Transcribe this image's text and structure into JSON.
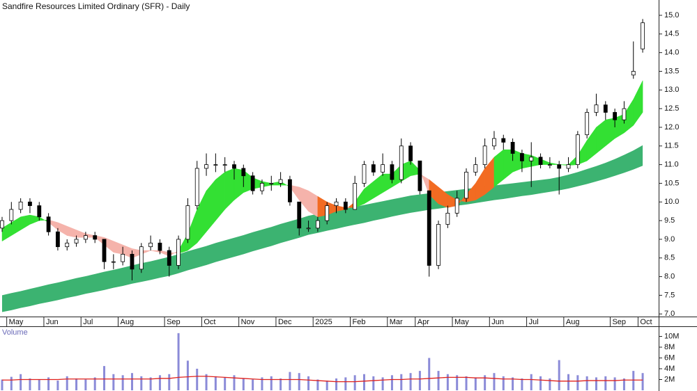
{
  "chart_data": {
    "type": "candlestick",
    "title": "Sandfire Resources Limited Ordinary (SFR) - Daily",
    "categories": [
      null,
      "May",
      null,
      null,
      null,
      "Jun",
      null,
      null,
      null,
      "Jul",
      null,
      null,
      null,
      "Aug",
      null,
      null,
      null,
      null,
      "Sep",
      null,
      null,
      null,
      "Oct",
      null,
      null,
      null,
      "Nov",
      null,
      null,
      null,
      "Dec",
      null,
      null,
      null,
      "2025",
      null,
      null,
      null,
      "Feb",
      null,
      null,
      null,
      "Mar",
      null,
      null,
      "Apr",
      null,
      null,
      null,
      "May",
      null,
      null,
      null,
      "Jun",
      null,
      null,
      null,
      "Jul",
      null,
      null,
      null,
      "Aug",
      null,
      null,
      null,
      null,
      "Sep",
      null,
      null,
      "Oct"
    ],
    "candles": {
      "open": [
        9.3,
        9.5,
        9.8,
        10.0,
        9.9,
        9.6,
        9.2,
        8.8,
        8.9,
        9.0,
        9.1,
        9.0,
        8.4,
        8.4,
        8.6,
        8.2,
        8.8,
        8.9,
        8.7,
        8.3,
        9.0,
        9.9,
        10.9,
        11.0,
        11.0,
        11.0,
        10.9,
        10.7,
        10.3,
        10.5,
        10.5,
        10.6,
        10.0,
        9.3,
        9.3,
        9.5,
        9.9,
        10.0,
        9.8,
        10.5,
        11.0,
        10.8,
        11.0,
        10.6,
        11.5,
        11.1,
        10.3,
        8.3,
        9.4,
        9.7,
        10.1,
        10.8,
        11.0,
        11.5,
        11.7,
        11.6,
        11.3,
        11.1,
        11.2,
        11.0,
        11.0,
        10.9,
        11.0,
        11.8,
        12.4,
        12.6,
        12.4,
        12.2,
        13.4,
        14.1
      ],
      "high": [
        9.6,
        10.0,
        10.1,
        10.1,
        10.0,
        9.7,
        9.3,
        9.0,
        9.1,
        9.2,
        9.2,
        9.0,
        8.6,
        8.8,
        8.7,
        8.9,
        9.1,
        9.0,
        8.8,
        9.1,
        10.1,
        11.1,
        11.3,
        11.3,
        11.2,
        11.1,
        11.0,
        10.8,
        10.6,
        10.7,
        10.8,
        10.7,
        10.0,
        9.5,
        9.6,
        10.0,
        10.1,
        10.1,
        10.7,
        11.1,
        11.1,
        11.3,
        11.1,
        11.7,
        11.6,
        11.1,
        10.3,
        9.5,
        9.9,
        10.3,
        10.9,
        11.2,
        11.7,
        11.9,
        11.8,
        11.7,
        11.4,
        11.6,
        11.3,
        11.2,
        11.1,
        11.2,
        11.9,
        12.5,
        12.9,
        12.7,
        12.5,
        12.7,
        14.3,
        14.9
      ],
      "low": [
        9.2,
        9.4,
        9.7,
        9.7,
        9.5,
        9.1,
        8.7,
        8.7,
        8.8,
        8.9,
        8.9,
        8.2,
        8.2,
        8.3,
        7.9,
        8.1,
        8.7,
        8.6,
        8.0,
        8.2,
        8.9,
        9.8,
        10.7,
        10.8,
        10.8,
        10.6,
        10.4,
        10.2,
        10.2,
        10.3,
        10.4,
        9.9,
        9.1,
        9.2,
        9.2,
        9.4,
        9.7,
        9.7,
        9.8,
        10.4,
        10.7,
        10.7,
        10.5,
        10.5,
        11.0,
        10.2,
        8.0,
        8.2,
        9.3,
        9.6,
        10.0,
        10.7,
        10.9,
        11.4,
        11.4,
        11.1,
        10.8,
        10.4,
        10.9,
        10.9,
        10.2,
        10.8,
        10.9,
        11.7,
        12.3,
        12.2,
        12.0,
        12.1,
        13.3,
        14.0
      ],
      "close": [
        9.5,
        9.8,
        10.0,
        9.9,
        9.6,
        9.2,
        8.8,
        8.9,
        9.0,
        9.1,
        9.0,
        8.4,
        8.4,
        8.6,
        8.2,
        8.8,
        8.9,
        8.7,
        8.3,
        9.0,
        9.9,
        10.9,
        11.0,
        11.0,
        11.0,
        10.9,
        10.7,
        10.3,
        10.5,
        10.5,
        10.6,
        10.0,
        9.3,
        9.3,
        9.5,
        9.9,
        10.0,
        9.8,
        10.5,
        11.0,
        10.8,
        11.0,
        10.6,
        11.5,
        11.1,
        10.3,
        8.3,
        9.4,
        9.7,
        10.1,
        10.8,
        11.0,
        11.5,
        11.7,
        11.6,
        11.3,
        11.1,
        11.2,
        11.0,
        11.0,
        10.9,
        11.0,
        11.8,
        12.4,
        12.6,
        12.4,
        12.2,
        12.5,
        13.5,
        14.8
      ],
      "up_color": "#ffffff",
      "down_color": "#000000",
      "outline_color": "#000000"
    },
    "long_band": {
      "upper": [
        7.5,
        7.56,
        7.61,
        7.67,
        7.73,
        7.79,
        7.84,
        7.9,
        7.96,
        8.01,
        8.07,
        8.13,
        8.18,
        8.24,
        8.3,
        8.36,
        8.41,
        8.47,
        8.53,
        8.6,
        8.68,
        8.75,
        8.82,
        8.9,
        8.97,
        9.04,
        9.11,
        9.19,
        9.26,
        9.33,
        9.41,
        9.48,
        9.55,
        9.63,
        9.68,
        9.73,
        9.77,
        9.82,
        9.87,
        9.92,
        9.97,
        10.02,
        10.07,
        10.12,
        10.17,
        10.2,
        10.23,
        10.26,
        10.29,
        10.32,
        10.35,
        10.38,
        10.41,
        10.44,
        10.47,
        10.5,
        10.53,
        10.56,
        10.59,
        10.62,
        10.67,
        10.73,
        10.8,
        10.88,
        10.96,
        11.05,
        11.15,
        11.26,
        11.38,
        11.52
      ],
      "lower": [
        7.05,
        7.1,
        7.16,
        7.21,
        7.27,
        7.32,
        7.37,
        7.43,
        7.48,
        7.54,
        7.59,
        7.64,
        7.7,
        7.75,
        7.81,
        7.86,
        7.91,
        7.97,
        8.02,
        8.09,
        8.17,
        8.24,
        8.31,
        8.39,
        8.46,
        8.53,
        8.6,
        8.68,
        8.75,
        8.82,
        8.9,
        8.97,
        9.04,
        9.12,
        9.17,
        9.23,
        9.28,
        9.34,
        9.39,
        9.44,
        9.5,
        9.55,
        9.61,
        9.66,
        9.71,
        9.75,
        9.79,
        9.82,
        9.86,
        9.9,
        9.93,
        9.97,
        10.01,
        10.05,
        10.08,
        10.12,
        10.16,
        10.19,
        10.23,
        10.27,
        10.31,
        10.36,
        10.42,
        10.48,
        10.55,
        10.62,
        10.7,
        10.78,
        10.87,
        10.97
      ],
      "color": "#3cb371"
    },
    "short_band": {
      "fast": [
        9.3,
        9.45,
        9.6,
        9.65,
        9.6,
        9.45,
        9.25,
        9.1,
        9.05,
        9.05,
        9.05,
        8.85,
        8.65,
        8.6,
        8.5,
        8.6,
        8.7,
        8.65,
        8.55,
        8.7,
        9.15,
        9.8,
        10.3,
        10.6,
        10.8,
        10.9,
        10.85,
        10.65,
        10.55,
        10.5,
        10.55,
        10.4,
        10.05,
        9.75,
        9.6,
        9.65,
        9.75,
        9.8,
        10.0,
        10.35,
        10.55,
        10.75,
        10.75,
        11.0,
        11.1,
        10.85,
        10.2,
        9.95,
        9.85,
        9.9,
        10.2,
        10.5,
        10.9,
        11.2,
        11.4,
        11.4,
        11.3,
        11.25,
        11.15,
        11.05,
        11.0,
        11.0,
        11.25,
        11.65,
        12.0,
        12.2,
        12.25,
        12.35,
        12.75,
        13.25
      ],
      "slow": [
        8.95,
        9.1,
        9.25,
        9.4,
        9.5,
        9.52,
        9.45,
        9.35,
        9.25,
        9.15,
        9.1,
        9.05,
        8.95,
        8.85,
        8.75,
        8.7,
        8.7,
        8.7,
        8.65,
        8.62,
        8.7,
        8.9,
        9.2,
        9.5,
        9.8,
        10.05,
        10.25,
        10.35,
        10.4,
        10.45,
        10.45,
        10.45,
        10.4,
        10.3,
        10.15,
        10.0,
        9.9,
        9.85,
        9.85,
        9.95,
        10.1,
        10.25,
        10.4,
        10.55,
        10.7,
        10.75,
        10.6,
        10.4,
        10.2,
        10.05,
        10.0,
        10.05,
        10.2,
        10.4,
        10.6,
        10.8,
        10.9,
        10.95,
        11.0,
        11.0,
        11.0,
        10.98,
        11.0,
        11.1,
        11.3,
        11.5,
        11.7,
        11.85,
        12.05,
        12.4
      ],
      "up_color": "#33e033",
      "down_color": "#f5b3ab",
      "overlap_color": "#f26b22"
    },
    "ylim": [
      6.93,
      15.41
    ],
    "yticks": [
      {
        "value": 7,
        "label": "7.0"
      },
      7.5,
      {
        "value": 8,
        "label": "8.0"
      },
      8.5,
      {
        "value": 9,
        "label": "9.0"
      },
      9.5,
      {
        "value": 10,
        "label": "10.0"
      },
      10.5,
      {
        "value": 11,
        "label": "11.0"
      },
      11.5,
      {
        "value": 12,
        "label": "12.0"
      },
      12.5,
      {
        "value": 13,
        "label": "13.0"
      },
      13.5,
      {
        "value": 14,
        "label": "14.0"
      },
      14.5,
      {
        "value": 15,
        "label": "15.0"
      }
    ],
    "volume": {
      "label": "Volume",
      "values": [
        2.0,
        2.5,
        3.0,
        2.2,
        2.0,
        2.4,
        1.8,
        2.6,
        2.2,
        2.0,
        2.4,
        4.5,
        3.0,
        2.8,
        3.2,
        2.6,
        2.4,
        2.8,
        3.0,
        10.6,
        5.5,
        4.0,
        3.0,
        2.6,
        2.4,
        2.8,
        2.2,
        2.0,
        2.4,
        2.6,
        2.2,
        3.4,
        3.2,
        2.6,
        2.0,
        1.8,
        2.2,
        2.4,
        2.8,
        3.0,
        2.6,
        2.4,
        2.8,
        3.0,
        3.2,
        3.6,
        6.0,
        3.6,
        3.0,
        2.8,
        2.6,
        2.4,
        2.8,
        3.2,
        2.6,
        2.4,
        2.2,
        3.0,
        2.6,
        2.2,
        5.6,
        3.0,
        2.8,
        2.6,
        2.4,
        2.6,
        2.4,
        2.2,
        3.6,
        3.2
      ],
      "ma": [
        1.9,
        1.9,
        2.0,
        2.0,
        2.0,
        2.0,
        2.0,
        2.1,
        2.1,
        2.1,
        2.1,
        2.1,
        2.1,
        2.1,
        2.1,
        2.1,
        2.1,
        2.2,
        2.2,
        2.4,
        2.5,
        2.6,
        2.6,
        2.5,
        2.4,
        2.3,
        2.2,
        2.1,
        2.0,
        2.0,
        2.0,
        2.0,
        2.0,
        1.9,
        1.8,
        1.7,
        1.6,
        1.6,
        1.6,
        1.7,
        1.8,
        1.9,
        2.0,
        2.0,
        2.1,
        2.1,
        2.2,
        2.3,
        2.4,
        2.4,
        2.4,
        2.3,
        2.3,
        2.2,
        2.1,
        2.1,
        2.0,
        2.0,
        1.9,
        1.8,
        1.7,
        1.7,
        1.7,
        1.8,
        1.8,
        1.8,
        1.8,
        1.9,
        1.9,
        1.9
      ],
      "color": "#8b8bd8",
      "ma_color": "#e0201b",
      "ylim": [
        0,
        11.74
      ],
      "yticks": [
        {
          "value": 2,
          "label": "2M"
        },
        {
          "value": 4,
          "label": "4M"
        },
        {
          "value": 6,
          "label": "6M"
        },
        {
          "value": 8,
          "label": "8M"
        },
        {
          "value": 10,
          "label": "10M"
        }
      ]
    }
  }
}
